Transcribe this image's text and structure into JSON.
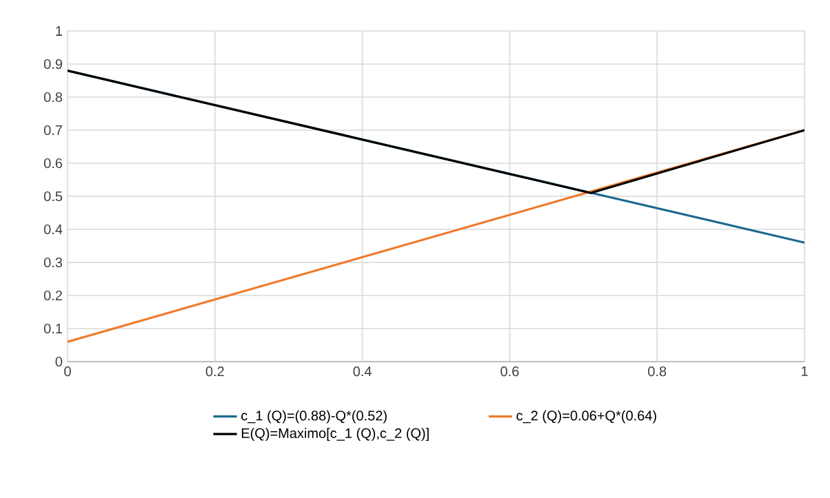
{
  "chart_data": {
    "type": "line",
    "series": [
      {
        "name": "c_1 (Q)=(0.88)-Q*(0.52)",
        "color": "#1d6a8e",
        "x": [
          0,
          1
        ],
        "values": [
          0.88,
          0.36
        ]
      },
      {
        "name": "c_2 (Q)=0.06+Q*(0.64)",
        "color": "#f07a2c",
        "x": [
          0,
          1
        ],
        "values": [
          0.06,
          0.7
        ]
      },
      {
        "name": "E(Q)=Maximo[c_1 (Q),c_2 (Q)]",
        "color": "#000000",
        "x": [
          0,
          0.71,
          1
        ],
        "values": [
          0.88,
          0.51,
          0.7
        ]
      }
    ],
    "xlim": [
      0,
      1
    ],
    "ylim": [
      0,
      1
    ],
    "xticks": [
      0,
      0.2,
      0.4,
      0.6,
      0.8,
      1
    ],
    "yticks": [
      0,
      0.1,
      0.2,
      0.3,
      0.4,
      0.5,
      0.6,
      0.7,
      0.8,
      0.9,
      1
    ],
    "grid": true,
    "legend": "bottom"
  }
}
